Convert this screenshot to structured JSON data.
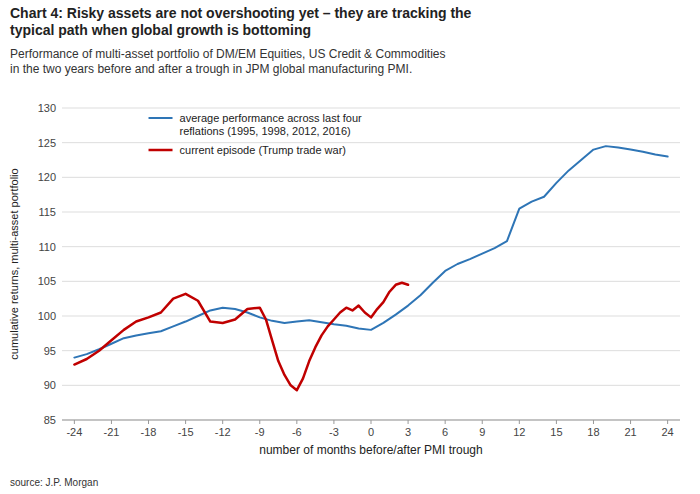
{
  "chart_data": {
    "type": "line",
    "title": [
      "Chart 4: Risky assets are not overshooting yet – they are tracking the",
      "typical path when global growth is bottoming"
    ],
    "subtitle": [
      "Performance of multi-asset portfolio of DM/EM Equities, US Credit & Commodities",
      "in the two years before and after a trough in JPM global manufacturing PMI."
    ],
    "x_label": "number of months before/after PMI trough",
    "y_label": "cumulative returns,  multi-asset portfolio",
    "source": "source: J.P. Morgan",
    "xlim": [
      -25,
      25
    ],
    "ylim": [
      85,
      130
    ],
    "xticks": [
      -24,
      -21,
      -18,
      -15,
      -12,
      -9,
      -6,
      -3,
      0,
      3,
      6,
      9,
      12,
      15,
      18,
      21,
      24
    ],
    "yticks": [
      85,
      90,
      95,
      100,
      105,
      110,
      115,
      120,
      125,
      130
    ],
    "grid": true,
    "legend": "upper left",
    "series": [
      {
        "name": "average performance across last four\nreflations (1995, 1998, 2012, 2016)",
        "color": "#2E75B6",
        "x": [
          -24,
          -23,
          -22,
          -21,
          -20,
          -19,
          -18,
          -17,
          -16,
          -15,
          -14,
          -13,
          -12,
          -11,
          -10,
          -9,
          -8,
          -7,
          -6,
          -5,
          -4,
          -3,
          -2,
          -1,
          0,
          1,
          2,
          3,
          4,
          5,
          6,
          7,
          8,
          9,
          10,
          11,
          12,
          13,
          14,
          15,
          16,
          17,
          18,
          19,
          20,
          21,
          22,
          23,
          24
        ],
        "values": [
          94.0,
          94.5,
          95.2,
          96.0,
          96.8,
          97.2,
          97.5,
          97.8,
          98.5,
          99.2,
          100.0,
          100.8,
          101.2,
          101.0,
          100.5,
          99.8,
          99.3,
          99.0,
          99.2,
          99.4,
          99.1,
          98.8,
          98.6,
          98.2,
          98.0,
          99.0,
          100.2,
          101.5,
          103.0,
          104.8,
          106.5,
          107.5,
          108.2,
          109.0,
          109.8,
          110.8,
          115.5,
          116.5,
          117.2,
          119.2,
          121.0,
          122.5,
          124.0,
          124.5,
          124.3,
          124.0,
          123.7,
          123.3,
          123.0
        ]
      },
      {
        "name": "current episode (Trump trade war)",
        "color": "#C00000",
        "x": [
          -24,
          -23,
          -22,
          -21,
          -20,
          -19,
          -18,
          -17,
          -16,
          -15,
          -14,
          -13,
          -12,
          -11,
          -10,
          -9,
          -8.5,
          -8,
          -7.5,
          -7,
          -6.5,
          -6,
          -5.5,
          -5,
          -4.5,
          -4,
          -3.5,
          -3,
          -2.5,
          -2,
          -1.5,
          -1,
          -0.5,
          0,
          0.5,
          1,
          1.5,
          2,
          2.5,
          3
        ],
        "values": [
          93.0,
          93.8,
          95.0,
          96.5,
          98.0,
          99.2,
          99.8,
          100.5,
          102.5,
          103.2,
          102.2,
          99.2,
          99.0,
          99.5,
          101.0,
          101.2,
          99.5,
          96.5,
          93.5,
          91.5,
          90.0,
          89.3,
          91.0,
          93.5,
          95.5,
          97.2,
          98.5,
          99.5,
          100.5,
          101.2,
          100.8,
          101.5,
          100.5,
          99.8,
          101.0,
          102.0,
          103.5,
          104.5,
          104.8,
          104.5
        ]
      }
    ]
  }
}
